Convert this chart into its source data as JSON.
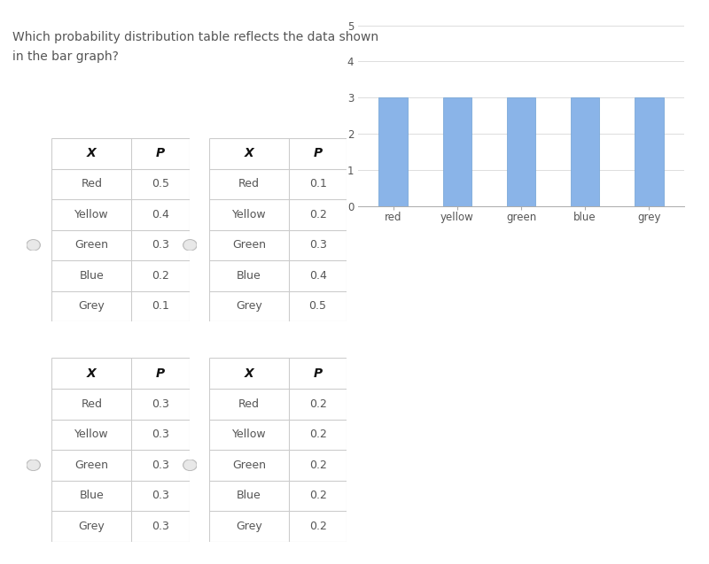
{
  "question_text_line1": "Which probability distribution table reflects the data shown",
  "question_text_line2": "in the bar graph?",
  "bar_categories": [
    "red",
    "yellow",
    "green",
    "blue",
    "grey"
  ],
  "bar_values": [
    3,
    3,
    3,
    3,
    3
  ],
  "bar_color": "#8ab4e8",
  "bar_edge_color": "#7aa8d8",
  "ylim": [
    0,
    5
  ],
  "yticks": [
    0,
    1,
    2,
    3,
    4,
    5
  ],
  "table1": {
    "headers": [
      "X",
      "P"
    ],
    "rows": [
      [
        "Red",
        "0.5"
      ],
      [
        "Yellow",
        "0.4"
      ],
      [
        "Green",
        "0.3"
      ],
      [
        "Blue",
        "0.2"
      ],
      [
        "Grey",
        "0.1"
      ]
    ]
  },
  "table2": {
    "headers": [
      "X",
      "P"
    ],
    "rows": [
      [
        "Red",
        "0.1"
      ],
      [
        "Yellow",
        "0.2"
      ],
      [
        "Green",
        "0.3"
      ],
      [
        "Blue",
        "0.4"
      ],
      [
        "Grey",
        "0.5"
      ]
    ]
  },
  "table3": {
    "headers": [
      "X",
      "P"
    ],
    "rows": [
      [
        "Red",
        "0.3"
      ],
      [
        "Yellow",
        "0.3"
      ],
      [
        "Green",
        "0.3"
      ],
      [
        "Blue",
        "0.3"
      ],
      [
        "Grey",
        "0.3"
      ]
    ]
  },
  "table4": {
    "headers": [
      "X",
      "P"
    ],
    "rows": [
      [
        "Red",
        "0.2"
      ],
      [
        "Yellow",
        "0.2"
      ],
      [
        "Green",
        "0.2"
      ],
      [
        "Blue",
        "0.2"
      ],
      [
        "Grey",
        "0.2"
      ]
    ]
  },
  "background_color": "#ffffff",
  "table_line_color": "#cccccc",
  "text_color": "#555555",
  "header_text_color": "#111111",
  "radio_color": "#bbbbbb",
  "radio_inner_color": "#e8e8e8"
}
